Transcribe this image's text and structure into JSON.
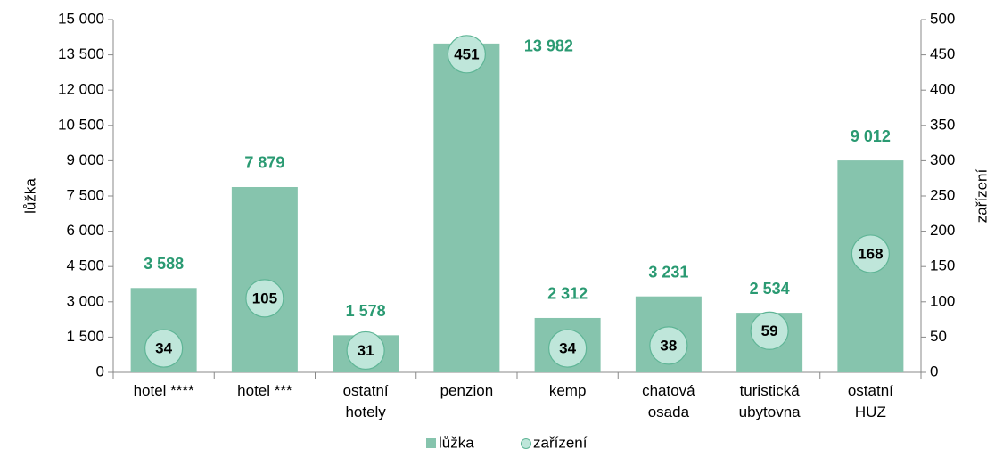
{
  "chart_data": {
    "type": "bar_with_markers",
    "categories": [
      "hotel ****",
      "hotel ***",
      "ostatní\nhotely",
      "penzion",
      "kemp",
      "chatová\nosada",
      "turistická\nubytovna",
      "ostatní\nHUZ"
    ],
    "series": [
      {
        "name": "lůžka",
        "color": "#86c4ad",
        "label_color": "#2a9a72",
        "values": [
          3588,
          7879,
          1578,
          13982,
          2312,
          3231,
          2534,
          9012
        ],
        "value_labels": [
          "3 588",
          "7 879",
          "1 578",
          "13 982",
          "2 312",
          "3 231",
          "2 534",
          "9 012"
        ]
      },
      {
        "name": "zařízení",
        "color": "#bfe6da",
        "axis": "y2",
        "values": [
          34,
          105,
          31,
          451,
          34,
          38,
          59,
          168
        ]
      }
    ],
    "ylabel": "lůžka",
    "y2label": "zařízení",
    "ylim": [
      0,
      15000
    ],
    "yticks": [
      0,
      {
        "value": 1500,
        "label": "1 500"
      },
      {
        "value": 3000,
        "label": "3 000"
      },
      {
        "value": 4500,
        "label": "4 500"
      },
      {
        "value": 6000,
        "label": "6 000"
      },
      {
        "value": 7500,
        "label": "7 500"
      },
      {
        "value": 9000,
        "label": "9 000"
      },
      {
        "value": 10500,
        "label": "10 500"
      },
      {
        "value": 12000,
        "label": "12 000"
      },
      {
        "value": 13500,
        "label": "13 500"
      },
      {
        "value": 15000,
        "label": "15 000"
      }
    ],
    "y2lim": [
      0,
      500
    ],
    "y2ticks": [
      0,
      50,
      100,
      150,
      200,
      250,
      300,
      350,
      400,
      450,
      500
    ],
    "legend": "bottom"
  }
}
